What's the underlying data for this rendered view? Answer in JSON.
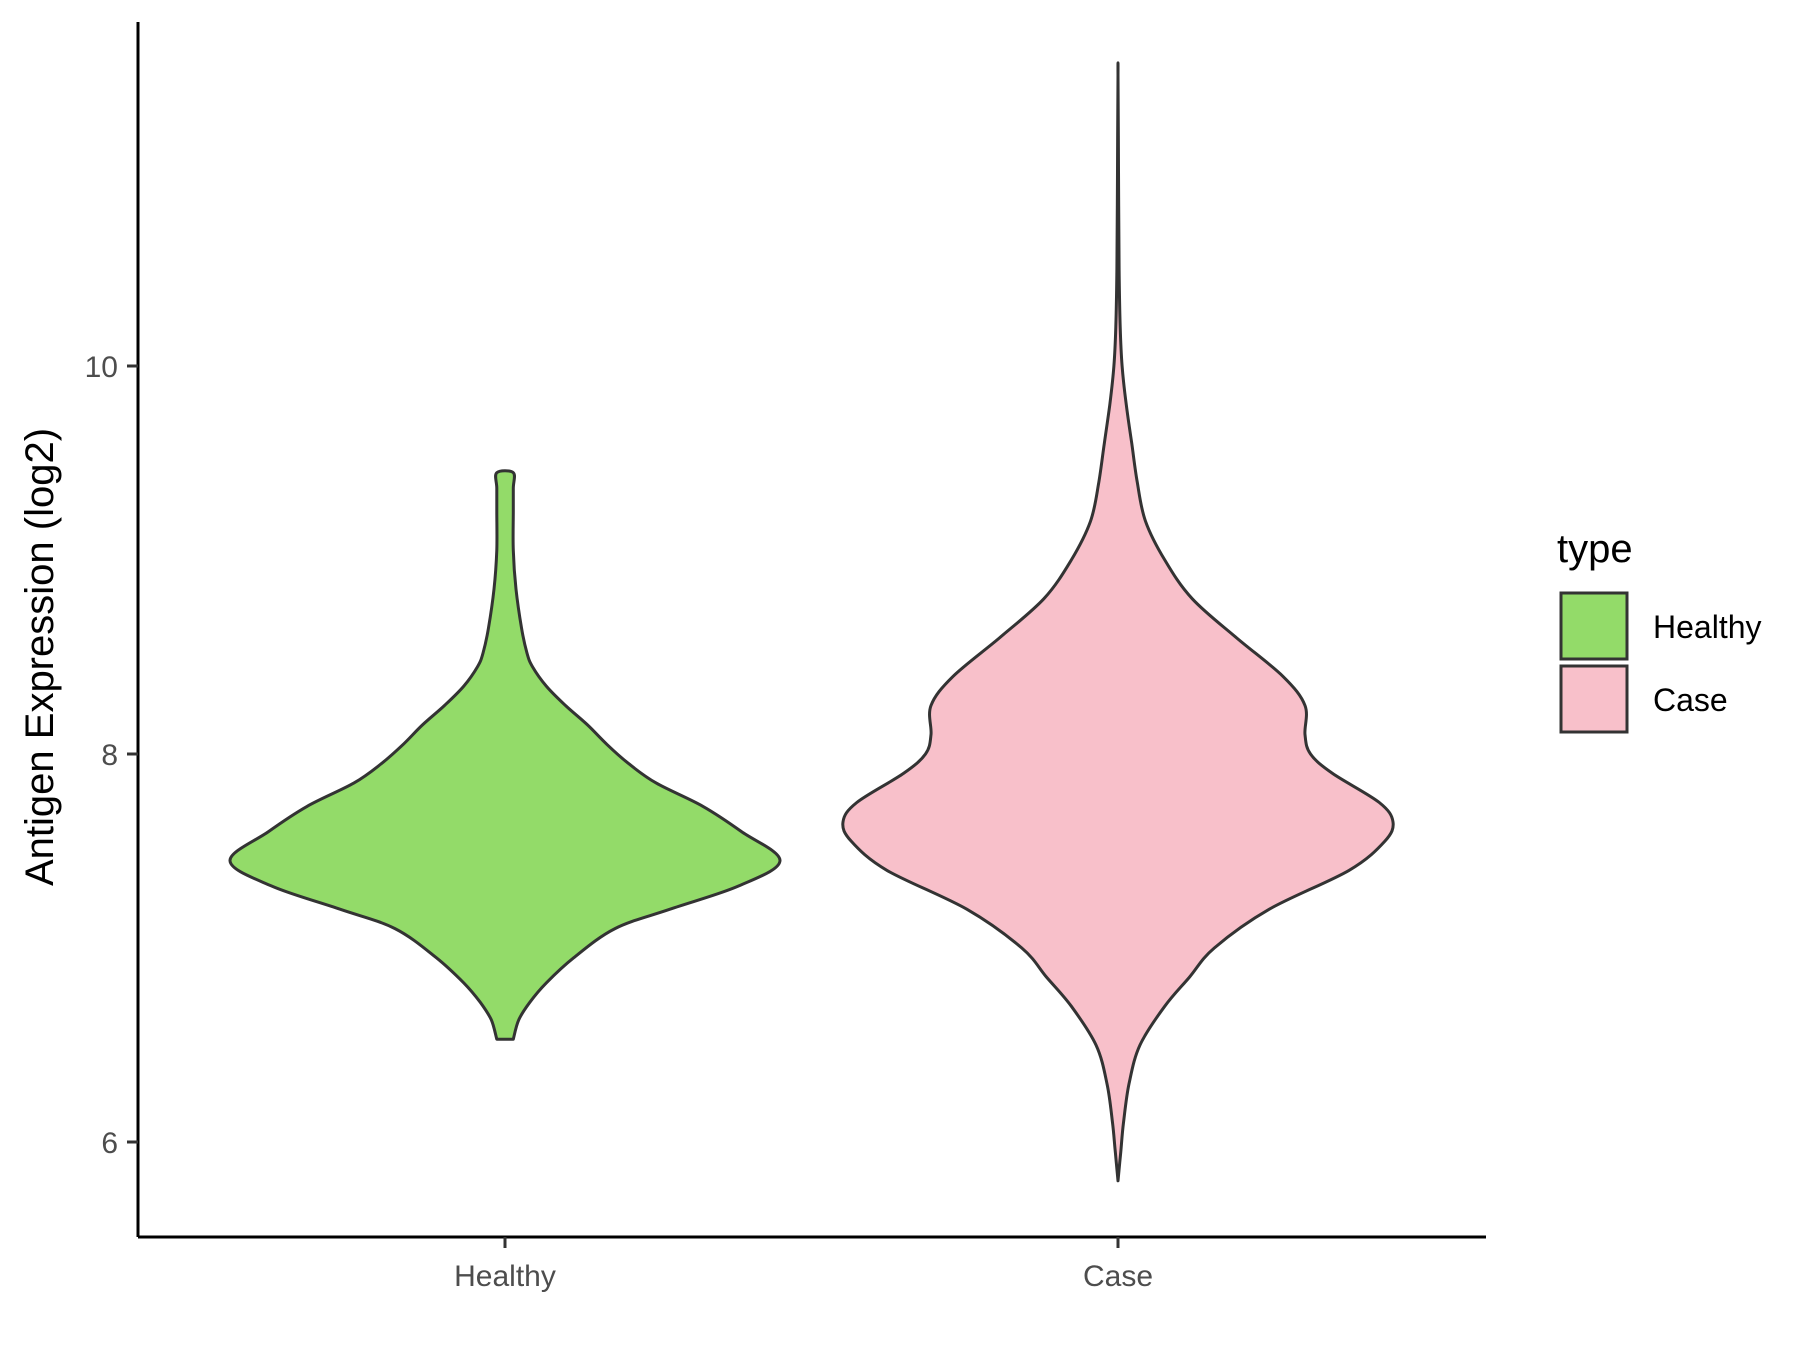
{
  "chart_data": {
    "type": "violin",
    "title": "",
    "xlabel": "",
    "ylabel": "Antigen Expression (log2)",
    "ylim": [
      5.5,
      11.8
    ],
    "y_ticks": [
      6,
      8,
      10
    ],
    "categories": [
      "Healthy",
      "Case"
    ],
    "grid": false,
    "legend": {
      "title": "type",
      "position": "right",
      "entries": [
        {
          "label": "Healthy",
          "color": "#93db69"
        },
        {
          "label": "Case",
          "color": "#f8c0ca"
        }
      ]
    },
    "series": [
      {
        "name": "Healthy",
        "color": "#93db69",
        "profile": [
          [
            6.53,
            0.03
          ],
          [
            6.63,
            0.05
          ],
          [
            6.72,
            0.09
          ],
          [
            6.82,
            0.15
          ],
          [
            6.95,
            0.25
          ],
          [
            7.1,
            0.4
          ],
          [
            7.2,
            0.6
          ],
          [
            7.32,
            0.85
          ],
          [
            7.45,
            1.0
          ],
          [
            7.6,
            0.86
          ],
          [
            7.73,
            0.72
          ],
          [
            7.85,
            0.55
          ],
          [
            7.95,
            0.45
          ],
          [
            8.05,
            0.37
          ],
          [
            8.15,
            0.3
          ],
          [
            8.25,
            0.22
          ],
          [
            8.35,
            0.15
          ],
          [
            8.45,
            0.1
          ],
          [
            8.52,
            0.08
          ],
          [
            8.65,
            0.06
          ],
          [
            8.85,
            0.04
          ],
          [
            9.05,
            0.03
          ],
          [
            9.25,
            0.03
          ],
          [
            9.37,
            0.03
          ],
          [
            9.45,
            0.03
          ]
        ]
      },
      {
        "name": "Case",
        "color": "#f8c0ca",
        "profile": [
          [
            5.8,
            0.0
          ],
          [
            5.95,
            0.01
          ],
          [
            6.1,
            0.02
          ],
          [
            6.3,
            0.04
          ],
          [
            6.5,
            0.08
          ],
          [
            6.7,
            0.17
          ],
          [
            6.85,
            0.26
          ],
          [
            7.0,
            0.35
          ],
          [
            7.2,
            0.55
          ],
          [
            7.4,
            0.84
          ],
          [
            7.55,
            0.97
          ],
          [
            7.65,
            1.0
          ],
          [
            7.75,
            0.95
          ],
          [
            7.9,
            0.78
          ],
          [
            8.0,
            0.7
          ],
          [
            8.1,
            0.68
          ],
          [
            8.25,
            0.68
          ],
          [
            8.4,
            0.6
          ],
          [
            8.6,
            0.43
          ],
          [
            8.8,
            0.27
          ],
          [
            9.0,
            0.17
          ],
          [
            9.2,
            0.1
          ],
          [
            9.4,
            0.07
          ],
          [
            9.6,
            0.05
          ],
          [
            9.8,
            0.03
          ],
          [
            10.0,
            0.015
          ],
          [
            10.2,
            0.008
          ],
          [
            10.5,
            0.004
          ],
          [
            11.0,
            0.002
          ],
          [
            11.5,
            0.0
          ]
        ]
      }
    ]
  }
}
